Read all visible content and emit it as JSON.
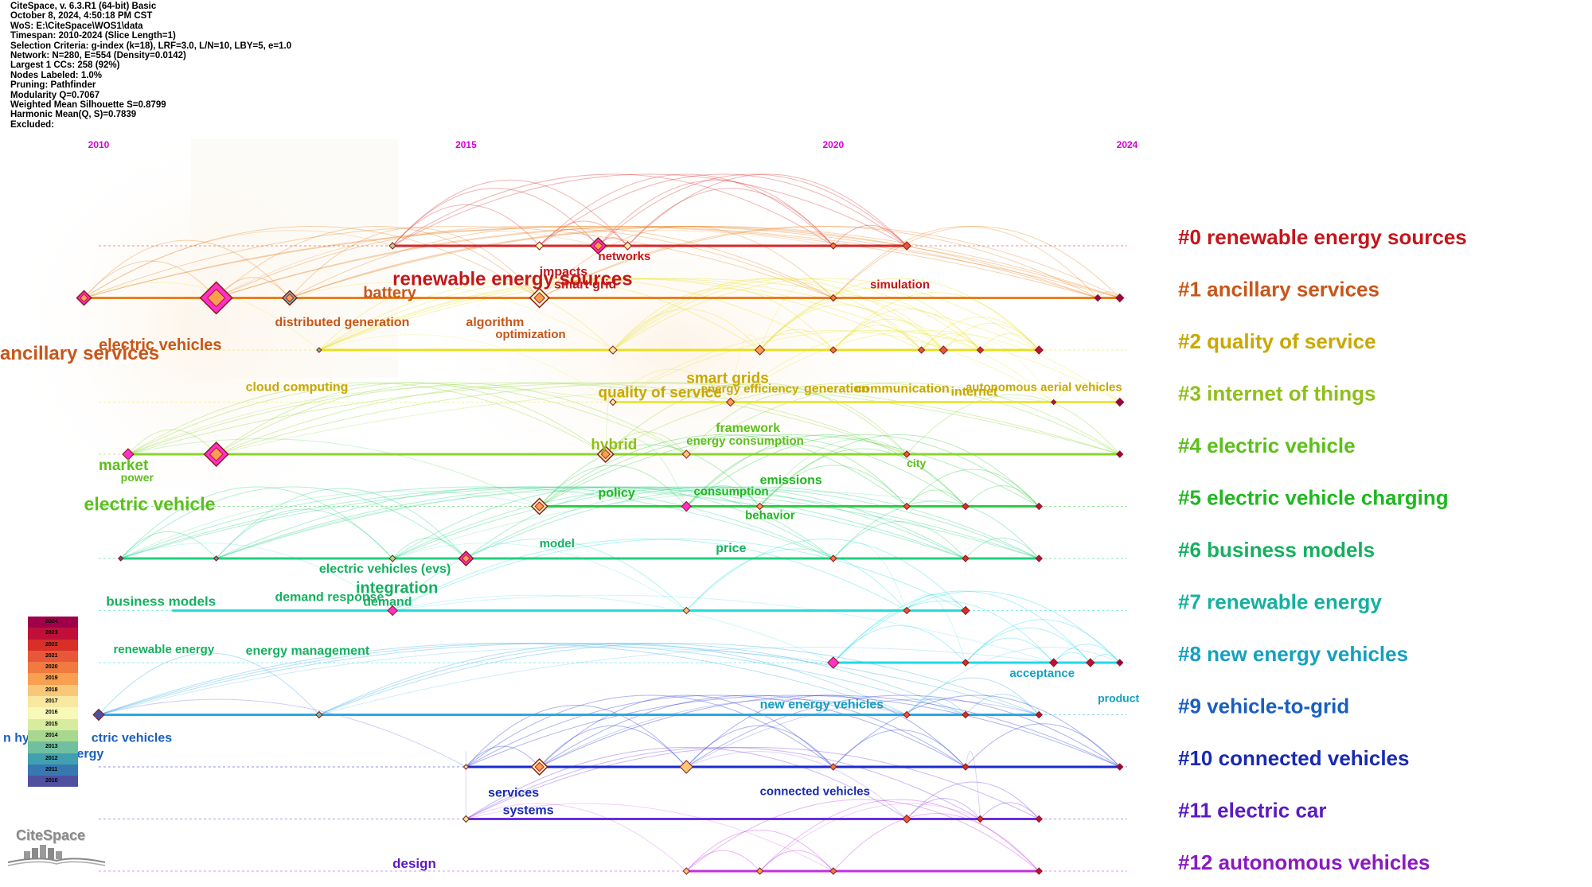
{
  "info": [
    "CiteSpace, v. 6.3.R1 (64-bit) Basic",
    "October 8, 2024, 4:50:18 PM CST",
    "WoS: E:\\CiteSpace\\WOS1\\data",
    "Timespan: 2010-2024 (Slice Length=1)",
    "Selection Criteria: g-index (k=18), LRF=3.0, L/N=10, LBY=5, e=1.0",
    "Network: N=280, E=554 (Density=0.0142)",
    "Largest 1 CCs: 258 (92%)",
    "Nodes Labeled: 1.0%",
    "Pruning: Pathfinder",
    "Modularity Q=0.7067",
    "Weighted Mean Silhouette S=0.8799",
    "Harmonic Mean(Q, S)=0.7839",
    "Excluded:"
  ],
  "years": [
    {
      "label": "2010",
      "year": 2010
    },
    {
      "label": "2015",
      "year": 2015
    },
    {
      "label": "2020",
      "year": 2020
    },
    {
      "label": "2024",
      "year": 2024
    }
  ],
  "year_color": "#d400d4",
  "clusters": [
    {
      "label": "#0 renewable energy sources",
      "color": "#c4161c",
      "line": "#d62728",
      "start": 2014.0,
      "end": 2021.0
    },
    {
      "label": "#1 ancillary services",
      "color": "#c8561a",
      "line": "#e8801e",
      "start": 2009.8,
      "end": 2023.9
    },
    {
      "label": "#2 quality of service",
      "color": "#c9a800",
      "line": "#e8e020",
      "start": 2013.0,
      "end": 2022.8
    },
    {
      "label": "#3 internet of things",
      "color": "#8fbf1a",
      "line": "#e8e83a",
      "start": 2017.0,
      "end": 2023.9
    },
    {
      "label": "#4 electric vehicle",
      "color": "#5cbf1a",
      "line": "#8ad42a",
      "start": 2010.4,
      "end": 2023.9
    },
    {
      "label": "#5 electric vehicle charging",
      "color": "#1fb81f",
      "line": "#2ecc40",
      "start": 2016.0,
      "end": 2022.8
    },
    {
      "label": "#6 business models",
      "color": "#15b060",
      "line": "#1fd080",
      "start": 2010.3,
      "end": 2022.8
    },
    {
      "label": "#7 renewable energy",
      "color": "#15b0a0",
      "line": "#1fe0d8",
      "start": 2011.0,
      "end": 2021.8
    },
    {
      "label": "#8 new energy vehicles",
      "color": "#15a0c0",
      "line": "#20d8e8",
      "start": 2020.0,
      "end": 2023.9
    },
    {
      "label": "#9 vehicle-to-grid",
      "color": "#1a5fbf",
      "line": "#2aa8e0",
      "start": 2010.0,
      "end": 2022.8
    },
    {
      "label": "#10 connected vehicles",
      "color": "#1a2ab0",
      "line": "#1a2ad0",
      "start": 2015.0,
      "end": 2023.9
    },
    {
      "label": "#11 electric car",
      "color": "#5a1ac0",
      "line": "#6a30e0",
      "start": 2015.0,
      "end": 2022.8
    },
    {
      "label": "#12 autonomous vehicles",
      "color": "#8a1ac0",
      "line": "#c030e0",
      "start": 2018.0,
      "end": 2022.8
    }
  ],
  "keywords": [
    {
      "text": "networks",
      "cluster": 0,
      "year": 2016.8,
      "dy": 18,
      "size": 15,
      "color": "#c4161c"
    },
    {
      "text": "impacts",
      "cluster": 1,
      "year": 2016.0,
      "dy": -28,
      "size": 16,
      "color": "#c4161c"
    },
    {
      "text": "smart grid",
      "cluster": 1,
      "year": 2016.2,
      "dy": -12,
      "size": 16,
      "color": "#c4161c"
    },
    {
      "text": "renewable energy sources",
      "cluster": 1,
      "year": 2014.0,
      "dy": -16,
      "size": 24,
      "color": "#c4161c"
    },
    {
      "text": "battery",
      "cluster": 1,
      "year": 2013.6,
      "dy": 0,
      "size": 20,
      "color": "#c8561a"
    },
    {
      "text": "simulation",
      "cluster": 1,
      "year": 2020.5,
      "dy": -12,
      "size": 15,
      "color": "#c4161c"
    },
    {
      "text": "distributed generation",
      "cluster": 2,
      "year": 2012.4,
      "dy": -30,
      "size": 16,
      "color": "#c8561a"
    },
    {
      "text": "algorithm",
      "cluster": 2,
      "year": 2015.0,
      "dy": -30,
      "size": 16,
      "color": "#c8561a"
    },
    {
      "text": "optimization",
      "cluster": 2,
      "year": 2015.4,
      "dy": -15,
      "size": 15,
      "color": "#c8561a"
    },
    {
      "text": "electric vehicles",
      "cluster": 2,
      "year": 2010.0,
      "dy": 0,
      "size": 20,
      "color": "#c8561a"
    },
    {
      "text": "ancillary services",
      "cluster": 2,
      "year": 2008.5,
      "dy": 12,
      "size": 24,
      "color": "#c8561a"
    },
    {
      "text": "cloud computing",
      "cluster": 3,
      "year": 2012.0,
      "dy": -14,
      "size": 16,
      "color": "#c9a800"
    },
    {
      "text": "quality of service",
      "cluster": 3,
      "year": 2016.8,
      "dy": -6,
      "size": 19,
      "color": "#c9a800"
    },
    {
      "text": "smart grids",
      "cluster": 3,
      "year": 2018.0,
      "dy": -24,
      "size": 19,
      "color": "#c9a800"
    },
    {
      "text": "energy efficiency",
      "cluster": 3,
      "year": 2018.2,
      "dy": -12,
      "size": 15,
      "color": "#c9a800"
    },
    {
      "text": "generation",
      "cluster": 3,
      "year": 2019.6,
      "dy": -12,
      "size": 16,
      "color": "#c9a800"
    },
    {
      "text": "communication",
      "cluster": 3,
      "year": 2020.3,
      "dy": -12,
      "size": 16,
      "color": "#c9a800"
    },
    {
      "text": "internet",
      "cluster": 3,
      "year": 2021.6,
      "dy": -8,
      "size": 16,
      "color": "#c9a800"
    },
    {
      "text": "autonomous aerial vehicles",
      "cluster": 3,
      "year": 2021.8,
      "dy": -14,
      "size": 15,
      "color": "#c9a800"
    },
    {
      "text": "market",
      "cluster": 4,
      "year": 2010.0,
      "dy": 20,
      "size": 19,
      "color": "#5cbf1a"
    },
    {
      "text": "power",
      "cluster": 4,
      "year": 2010.3,
      "dy": 34,
      "size": 14,
      "color": "#5cbf1a"
    },
    {
      "text": "hybrid",
      "cluster": 4,
      "year": 2016.7,
      "dy": -6,
      "size": 19,
      "color": "#8fbf1a"
    },
    {
      "text": "framework",
      "cluster": 4,
      "year": 2018.4,
      "dy": -28,
      "size": 16,
      "color": "#5cbf1a"
    },
    {
      "text": "energy consumption",
      "cluster": 4,
      "year": 2018.0,
      "dy": -12,
      "size": 15,
      "color": "#5cbf1a"
    },
    {
      "text": "city",
      "cluster": 4,
      "year": 2021.0,
      "dy": 16,
      "size": 14,
      "color": "#5cbf1a"
    },
    {
      "text": "electric vehicle",
      "cluster": 5,
      "year": 2009.8,
      "dy": 5,
      "size": 23,
      "color": "#5cbf1a"
    },
    {
      "text": "emissions",
      "cluster": 5,
      "year": 2019.0,
      "dy": -28,
      "size": 16,
      "color": "#1fb81f"
    },
    {
      "text": "policy",
      "cluster": 5,
      "year": 2016.8,
      "dy": -12,
      "size": 16,
      "color": "#1fb81f"
    },
    {
      "text": "consumption",
      "cluster": 5,
      "year": 2018.1,
      "dy": -14,
      "size": 15,
      "color": "#1fb81f"
    },
    {
      "text": "behavior",
      "cluster": 5,
      "year": 2018.8,
      "dy": 16,
      "size": 15,
      "color": "#1fb81f"
    },
    {
      "text": "model",
      "cluster": 6,
      "year": 2016.0,
      "dy": -14,
      "size": 15,
      "color": "#15b060"
    },
    {
      "text": "price",
      "cluster": 6,
      "year": 2018.4,
      "dy": -8,
      "size": 16,
      "color": "#15b060"
    },
    {
      "text": "electric vehicles (evs)",
      "cluster": 6,
      "year": 2013.0,
      "dy": 18,
      "size": 16,
      "color": "#15b060"
    },
    {
      "text": "integration",
      "cluster": 7,
      "year": 2013.5,
      "dy": -22,
      "size": 20,
      "color": "#15b060"
    },
    {
      "text": "business models",
      "cluster": 7,
      "year": 2010.1,
      "dy": -6,
      "size": 17,
      "color": "#15b060"
    },
    {
      "text": "demand response",
      "cluster": 7,
      "year": 2012.4,
      "dy": -12,
      "size": 16,
      "color": "#15b060"
    },
    {
      "text": "demand",
      "cluster": 7,
      "year": 2013.6,
      "dy": -6,
      "size": 16,
      "color": "#15b060"
    },
    {
      "text": "renewable energy",
      "cluster": 8,
      "year": 2010.2,
      "dy": -12,
      "size": 15,
      "color": "#15b060"
    },
    {
      "text": "energy management",
      "cluster": 8,
      "year": 2012.0,
      "dy": -10,
      "size": 16,
      "color": "#15b060"
    },
    {
      "text": "acceptance",
      "cluster": 8,
      "year": 2022.4,
      "dy": 18,
      "size": 15,
      "color": "#15a0c0"
    },
    {
      "text": "product",
      "cluster": 9,
      "year": 2023.6,
      "dy": -16,
      "size": 14,
      "color": "#15a0c0"
    },
    {
      "text": "new energy vehicles",
      "cluster": 9,
      "year": 2019.0,
      "dy": -8,
      "size": 16,
      "color": "#15a0c0"
    },
    {
      "text": "n hy",
      "cluster": 9,
      "year": 2008.7,
      "dy": 34,
      "size": 16,
      "color": "#1a5fbf"
    },
    {
      "text": "ctric vehicles",
      "cluster": 9,
      "year": 2009.9,
      "dy": 34,
      "size": 16,
      "color": "#1a5fbf"
    },
    {
      "text": "energy",
      "cluster": 9,
      "year": 2009.5,
      "dy": 54,
      "size": 16,
      "color": "#1a5fbf"
    },
    {
      "text": "services",
      "cluster": 11,
      "year": 2015.3,
      "dy": -28,
      "size": 16,
      "color": "#1a2ab0"
    },
    {
      "text": "systems",
      "cluster": 11,
      "year": 2015.5,
      "dy": -6,
      "size": 16,
      "color": "#1a2ab0"
    },
    {
      "text": "connected vehicles",
      "cluster": 11,
      "year": 2019.0,
      "dy": -30,
      "size": 15,
      "color": "#1a2ab0"
    },
    {
      "text": "design",
      "cluster": 12,
      "year": 2014.0,
      "dy": -4,
      "size": 17,
      "color": "#5a1ac0"
    }
  ],
  "nodes": [
    {
      "cluster": 0,
      "year": 2014.0,
      "size": 4
    },
    {
      "cluster": 0,
      "year": 2016.0,
      "size": 5
    },
    {
      "cluster": 0,
      "year": 2016.8,
      "size": 10,
      "color": "#ff30c8"
    },
    {
      "cluster": 0,
      "year": 2017.2,
      "size": 5
    },
    {
      "cluster": 0,
      "year": 2020.0,
      "size": 4
    },
    {
      "cluster": 0,
      "year": 2021.0,
      "size": 5
    },
    {
      "cluster": 1,
      "year": 2009.8,
      "size": 9,
      "color": "#ff30c8"
    },
    {
      "cluster": 1,
      "year": 2011.6,
      "size": 20,
      "color": "#ff30c8"
    },
    {
      "cluster": 1,
      "year": 2012.6,
      "size": 9
    },
    {
      "cluster": 1,
      "year": 2016.0,
      "size": 12
    },
    {
      "cluster": 1,
      "year": 2020.0,
      "size": 4
    },
    {
      "cluster": 1,
      "year": 2023.6,
      "size": 4
    },
    {
      "cluster": 1,
      "year": 2023.9,
      "size": 5
    },
    {
      "cluster": 2,
      "year": 2013.0,
      "size": 3
    },
    {
      "cluster": 2,
      "year": 2017.0,
      "size": 5
    },
    {
      "cluster": 2,
      "year": 2019.0,
      "size": 6
    },
    {
      "cluster": 2,
      "year": 2020.0,
      "size": 4
    },
    {
      "cluster": 2,
      "year": 2021.2,
      "size": 4
    },
    {
      "cluster": 2,
      "year": 2021.5,
      "size": 5
    },
    {
      "cluster": 2,
      "year": 2022.0,
      "size": 4
    },
    {
      "cluster": 2,
      "year": 2022.8,
      "size": 5
    },
    {
      "cluster": 3,
      "year": 2017.0,
      "size": 4
    },
    {
      "cluster": 3,
      "year": 2018.6,
      "size": 5
    },
    {
      "cluster": 3,
      "year": 2023.0,
      "size": 3
    },
    {
      "cluster": 3,
      "year": 2023.9,
      "size": 5
    },
    {
      "cluster": 4,
      "year": 2010.4,
      "size": 7,
      "color": "#ff30c8"
    },
    {
      "cluster": 4,
      "year": 2011.6,
      "size": 15,
      "color": "#ff30c8"
    },
    {
      "cluster": 4,
      "year": 2016.9,
      "size": 10
    },
    {
      "cluster": 4,
      "year": 2018.0,
      "size": 5
    },
    {
      "cluster": 4,
      "year": 2021.0,
      "size": 4
    },
    {
      "cluster": 4,
      "year": 2023.9,
      "size": 4
    },
    {
      "cluster": 5,
      "year": 2016.0,
      "size": 10
    },
    {
      "cluster": 5,
      "year": 2018.0,
      "size": 6,
      "color": "#ff30c8"
    },
    {
      "cluster": 5,
      "year": 2019.0,
      "size": 4
    },
    {
      "cluster": 5,
      "year": 2021.0,
      "size": 4
    },
    {
      "cluster": 5,
      "year": 2021.8,
      "size": 4
    },
    {
      "cluster": 5,
      "year": 2022.8,
      "size": 4
    },
    {
      "cluster": 6,
      "year": 2010.3,
      "size": 3
    },
    {
      "cluster": 6,
      "year": 2011.6,
      "size": 3
    },
    {
      "cluster": 6,
      "year": 2014.0,
      "size": 4
    },
    {
      "cluster": 6,
      "year": 2015.0,
      "size": 9,
      "color": "#ff30c8"
    },
    {
      "cluster": 6,
      "year": 2020.0,
      "size": 4
    },
    {
      "cluster": 6,
      "year": 2021.8,
      "size": 4
    },
    {
      "cluster": 6,
      "year": 2022.8,
      "size": 4
    },
    {
      "cluster": 7,
      "year": 2014.0,
      "size": 6,
      "color": "#ff30c8"
    },
    {
      "cluster": 7,
      "year": 2018.0,
      "size": 4
    },
    {
      "cluster": 7,
      "year": 2021.0,
      "size": 4
    },
    {
      "cluster": 7,
      "year": 2021.8,
      "size": 5
    },
    {
      "cluster": 8,
      "year": 2020.0,
      "size": 7,
      "color": "#ff30c8"
    },
    {
      "cluster": 8,
      "year": 2021.8,
      "size": 4
    },
    {
      "cluster": 8,
      "year": 2023.0,
      "size": 5
    },
    {
      "cluster": 8,
      "year": 2023.5,
      "size": 5
    },
    {
      "cluster": 8,
      "year": 2023.9,
      "size": 4
    },
    {
      "cluster": 9,
      "year": 2010.0,
      "size": 7
    },
    {
      "cluster": 9,
      "year": 2013.0,
      "size": 4
    },
    {
      "cluster": 9,
      "year": 2021.0,
      "size": 4
    },
    {
      "cluster": 9,
      "year": 2021.8,
      "size": 4
    },
    {
      "cluster": 9,
      "year": 2022.8,
      "size": 4
    },
    {
      "cluster": 10,
      "year": 2015.0,
      "size": 3
    },
    {
      "cluster": 10,
      "year": 2016.0,
      "size": 10
    },
    {
      "cluster": 10,
      "year": 2018.0,
      "size": 8
    },
    {
      "cluster": 10,
      "year": 2020.0,
      "size": 4
    },
    {
      "cluster": 10,
      "year": 2021.8,
      "size": 4
    },
    {
      "cluster": 10,
      "year": 2023.9,
      "size": 4
    },
    {
      "cluster": 11,
      "year": 2015.0,
      "size": 4
    },
    {
      "cluster": 11,
      "year": 2021.0,
      "size": 5
    },
    {
      "cluster": 11,
      "year": 2022.0,
      "size": 4
    },
    {
      "cluster": 11,
      "year": 2022.8,
      "size": 4
    },
    {
      "cluster": 12,
      "year": 2018.0,
      "size": 4
    },
    {
      "cluster": 12,
      "year": 2019.0,
      "size": 4
    },
    {
      "cluster": 12,
      "year": 2020.0,
      "size": 4
    },
    {
      "cluster": 12,
      "year": 2022.8,
      "size": 4
    }
  ],
  "legend": [
    {
      "label": "2024",
      "color": "#a0004a"
    },
    {
      "label": "2023",
      "color": "#c0103a"
    },
    {
      "label": "2022",
      "color": "#d83028"
    },
    {
      "label": "2021",
      "color": "#e85838"
    },
    {
      "label": "2020",
      "color": "#f07a40"
    },
    {
      "label": "2019",
      "color": "#f8a050"
    },
    {
      "label": "2018",
      "color": "#f8c878"
    },
    {
      "label": "2017",
      "color": "#f8e8a0"
    },
    {
      "label": "2016",
      "color": "#f8f8b8"
    },
    {
      "label": "2015",
      "color": "#d8eca0"
    },
    {
      "label": "2014",
      "color": "#a8d890"
    },
    {
      "label": "2013",
      "color": "#70c0a0"
    },
    {
      "label": "2012",
      "color": "#40a0b0"
    },
    {
      "label": "2011",
      "color": "#3878b0"
    },
    {
      "label": "2010",
      "color": "#5050a0"
    }
  ],
  "logo": {
    "text": "CiteSpace"
  }
}
